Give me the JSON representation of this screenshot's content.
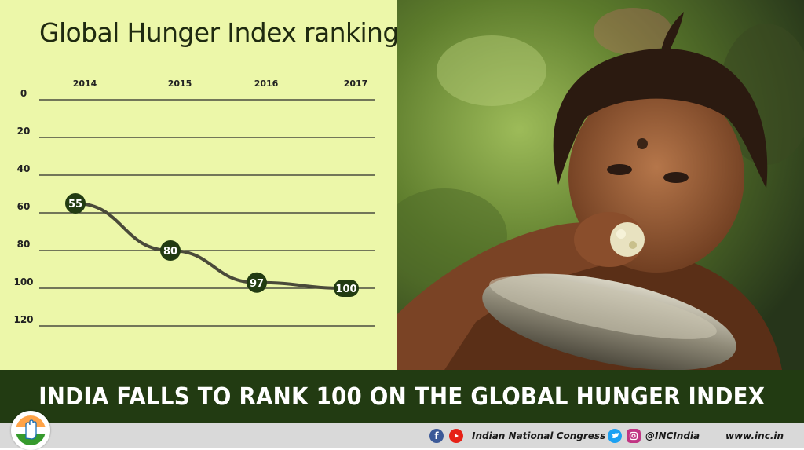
{
  "chart_data": {
    "type": "line",
    "title": "Global Hunger Index ranking",
    "categories": [
      "2014",
      "2015",
      "2016",
      "2017"
    ],
    "values": [
      55,
      80,
      97,
      100
    ],
    "data_labels": [
      "55",
      "80",
      "97",
      "100"
    ],
    "y_ticks": [
      "0",
      "20",
      "40",
      "60",
      "80",
      "100",
      "120"
    ],
    "ylim": [
      0,
      120
    ],
    "y_inverted": true,
    "x_axis_position": "top",
    "grid": true,
    "colors": {
      "line": "#4a4a3a",
      "marker": "#223b12",
      "gridline": "#2a2a2a",
      "panel": "#ecf7a9"
    }
  },
  "headline": "INDIA FALLS TO RANK 100 ON THE GLOBAL HUNGER INDEX",
  "footer": {
    "org_name": "Indian National Congress",
    "handle": "@INCIndia",
    "website": "www.inc.in",
    "icons": [
      "facebook-icon",
      "youtube-icon",
      "twitter-icon",
      "instagram-icon"
    ]
  },
  "colors": {
    "banner": "#223b12",
    "footer": "#d9d9d9"
  }
}
